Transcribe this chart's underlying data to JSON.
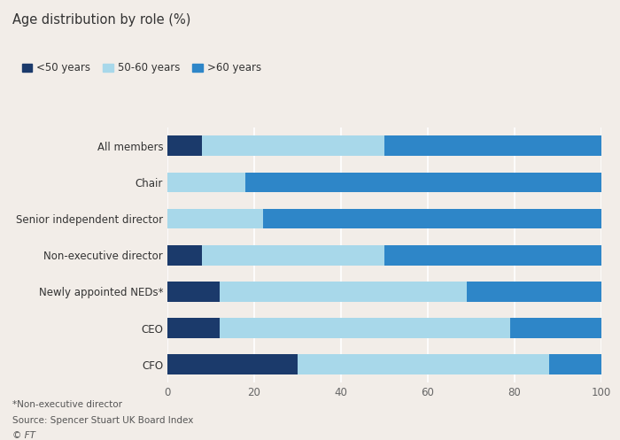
{
  "title": "Age distribution by role (%)",
  "categories": [
    "All members",
    "Chair",
    "Senior independent director",
    "Non-executive director",
    "Newly appointed NEDs*",
    "CEO",
    "CFO"
  ],
  "series": {
    "<50 years": [
      8,
      0,
      0,
      8,
      12,
      12,
      30
    ],
    "50-60 years": [
      42,
      18,
      22,
      42,
      57,
      67,
      58
    ],
    ">60 years": [
      50,
      82,
      78,
      50,
      31,
      21,
      12
    ]
  },
  "colors": {
    "<50 years": "#1b3a6b",
    "50-60 years": "#a8d8ea",
    ">60 years": "#2e86c8"
  },
  "xlim": [
    0,
    100
  ],
  "xticks": [
    0,
    20,
    40,
    60,
    80,
    100
  ],
  "background_color": "#f2ede8",
  "footnote1": "*Non-executive director",
  "footnote2": "Source: Spencer Stuart UK Board Index",
  "footnote3": "© FT",
  "bar_height": 0.55,
  "title_fontsize": 10.5,
  "legend_fontsize": 8.5,
  "tick_fontsize": 8.5,
  "label_fontsize": 8.5
}
